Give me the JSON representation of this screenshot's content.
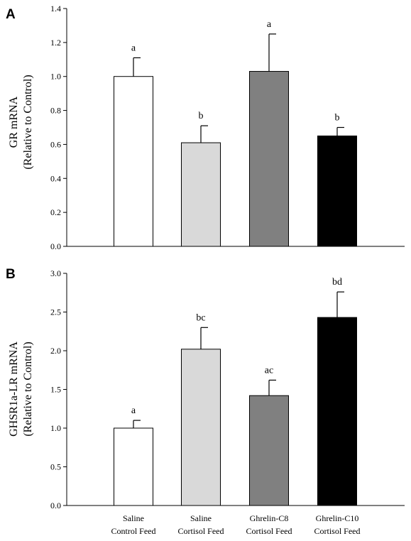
{
  "chart_data": [
    {
      "type": "bar",
      "panel_label": "A",
      "categories": [
        "Saline\nControl Feed",
        "Saline\nCortisol Feed",
        "Ghrelin-C8\nCortisol Feed",
        "Ghrelin-C10\nCortisol Feed"
      ],
      "values": [
        1.0,
        0.61,
        1.03,
        0.65
      ],
      "errors": [
        0.11,
        0.1,
        0.22,
        0.05
      ],
      "significance_labels": [
        "a",
        "b",
        "a",
        "b"
      ],
      "bar_colors": [
        "#ffffff",
        "#d9d9d9",
        "#808080",
        "#000000"
      ],
      "ylabel_line1": "GR mRNA",
      "ylabel_line2": "(Relative to Control)",
      "ylim": [
        0,
        1.4
      ],
      "yticks": [
        "0.0",
        "0.2",
        "0.4",
        "0.6",
        "0.8",
        "1.0",
        "1.2",
        "1.4"
      ]
    },
    {
      "type": "bar",
      "panel_label": "B",
      "categories": [
        "Saline\nControl Feed",
        "Saline\nCortisol Feed",
        "Ghrelin-C8\nCortisol Feed",
        "Ghrelin-C10\nCortisol Feed"
      ],
      "values": [
        1.0,
        2.02,
        1.42,
        2.43
      ],
      "errors": [
        0.1,
        0.28,
        0.2,
        0.33
      ],
      "significance_labels": [
        "a",
        "bc",
        "ac",
        "bd"
      ],
      "bar_colors": [
        "#ffffff",
        "#d9d9d9",
        "#808080",
        "#000000"
      ],
      "ylabel_line1": "GHSR1a-LR mRNA",
      "ylabel_line2": "(Relative to Control)",
      "ylim": [
        0,
        3.0
      ],
      "yticks": [
        "0.0",
        "0.5",
        "1.0",
        "1.5",
        "2.0",
        "2.5",
        "3.0"
      ]
    }
  ],
  "x_labels": [
    {
      "line1": "Saline",
      "line2": "Control Feed"
    },
    {
      "line1": "Saline",
      "line2": "Cortisol Feed"
    },
    {
      "line1": "Ghrelin-C8",
      "line2": "Cortisol Feed"
    },
    {
      "line1": "Ghrelin-C10",
      "line2": "Cortisol Feed"
    }
  ]
}
